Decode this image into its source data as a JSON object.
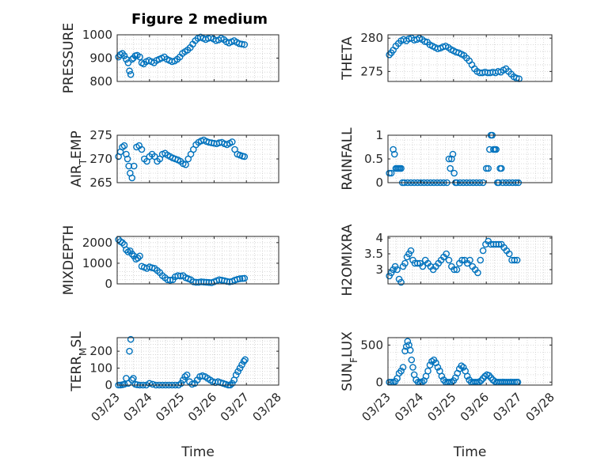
{
  "figure": {
    "title": "Figure 2 medium",
    "marker_color": "#0072bd"
  },
  "chart_data": [
    {
      "type": "scatter",
      "ylabel": "PRESSURE",
      "ylabel_sub": "",
      "ylim": [
        800,
        1000
      ],
      "yticks": [
        800,
        900,
        1000
      ],
      "grid": true,
      "xlim": [
        0,
        5
      ],
      "xticks": [
        "03/23",
        "03/24",
        "03/25",
        "03/26",
        "03/27",
        "03/28"
      ],
      "xlabel": "",
      "x": [
        0.04,
        0.1,
        0.16,
        0.22,
        0.28,
        0.34,
        0.38,
        0.42,
        0.46,
        0.5,
        0.56,
        0.62,
        0.7,
        0.76,
        0.82,
        0.9,
        0.98,
        1.06,
        1.14,
        1.22,
        1.3,
        1.38,
        1.46,
        1.54,
        1.62,
        1.7,
        1.78,
        1.86,
        1.94,
        2.02,
        2.1,
        2.18,
        2.26,
        2.34,
        2.42,
        2.5,
        2.58,
        2.66,
        2.74,
        2.82,
        2.9,
        2.98,
        3.06,
        3.14,
        3.22,
        3.3,
        3.38,
        3.46,
        3.54,
        3.62,
        3.7,
        3.78,
        3.86,
        3.94
      ],
      "y": [
        905,
        915,
        920,
        910,
        895,
        880,
        845,
        830,
        895,
        900,
        910,
        912,
        905,
        880,
        875,
        885,
        890,
        885,
        880,
        890,
        895,
        900,
        905,
        895,
        890,
        885,
        888,
        895,
        905,
        920,
        928,
        935,
        945,
        960,
        975,
        985,
        990,
        985,
        980,
        985,
        988,
        982,
        975,
        978,
        985,
        980,
        970,
        965,
        970,
        975,
        968,
        962,
        960,
        958
      ]
    },
    {
      "type": "scatter",
      "ylabel": "THETA",
      "ylabel_sub": "",
      "ylim": [
        273.5,
        280.5
      ],
      "yticks": [
        275,
        280
      ],
      "grid": true,
      "xlim": [
        0,
        5
      ],
      "xticks": [
        "03/23",
        "03/24",
        "03/25",
        "03/26",
        "03/27",
        "03/28"
      ],
      "xlabel": "",
      "x": [
        0.04,
        0.1,
        0.16,
        0.24,
        0.32,
        0.4,
        0.48,
        0.56,
        0.64,
        0.72,
        0.8,
        0.88,
        0.96,
        1.04,
        1.12,
        1.2,
        1.28,
        1.36,
        1.44,
        1.52,
        1.6,
        1.68,
        1.76,
        1.84,
        1.92,
        2.0,
        2.08,
        2.16,
        2.24,
        2.32,
        2.4,
        2.48,
        2.56,
        2.64,
        2.72,
        2.8,
        2.88,
        2.96,
        3.04,
        3.12,
        3.2,
        3.28,
        3.36,
        3.44,
        3.52,
        3.6,
        3.68,
        3.76,
        3.84,
        3.92,
        4.0
      ],
      "y": [
        277.5,
        277.8,
        278.2,
        278.8,
        279.2,
        279.6,
        279.8,
        279.6,
        279.9,
        280.0,
        279.7,
        279.8,
        280.0,
        279.8,
        279.5,
        279.4,
        279.0,
        278.8,
        278.6,
        278.4,
        278.5,
        278.7,
        278.8,
        278.6,
        278.3,
        278.1,
        277.9,
        277.8,
        277.6,
        277.4,
        277.0,
        276.6,
        276.0,
        275.4,
        275.0,
        274.8,
        274.8,
        274.9,
        274.8,
        274.8,
        274.9,
        274.8,
        275.0,
        274.9,
        275.2,
        275.4,
        275.0,
        274.6,
        274.2,
        274.0,
        273.9
      ]
    },
    {
      "type": "scatter",
      "ylabel": "AIR",
      "ylabel_sub": "T",
      "ylabel_suffix": "EMP",
      "ylim": [
        265,
        275
      ],
      "yticks": [
        265,
        270,
        275
      ],
      "grid": true,
      "xlim": [
        0,
        5
      ],
      "xticks": [
        "03/23",
        "03/24",
        "03/25",
        "03/26",
        "03/27",
        "03/28"
      ],
      "xlabel": "",
      "x": [
        0.04,
        0.1,
        0.16,
        0.22,
        0.28,
        0.32,
        0.36,
        0.4,
        0.46,
        0.52,
        0.6,
        0.68,
        0.76,
        0.84,
        0.92,
        1.0,
        1.08,
        1.16,
        1.24,
        1.32,
        1.4,
        1.48,
        1.56,
        1.64,
        1.72,
        1.8,
        1.88,
        1.96,
        2.04,
        2.12,
        2.2,
        2.28,
        2.36,
        2.44,
        2.52,
        2.6,
        2.68,
        2.76,
        2.84,
        2.92,
        3.0,
        3.08,
        3.16,
        3.24,
        3.32,
        3.4,
        3.48,
        3.56,
        3.64,
        3.72,
        3.8,
        3.88,
        3.94
      ],
      "y": [
        270.5,
        271.5,
        272.5,
        272.8,
        271.0,
        270.0,
        268.5,
        267.0,
        266.0,
        268.5,
        272.5,
        272.8,
        272.0,
        270.0,
        269.5,
        270.5,
        271.0,
        270.5,
        269.5,
        270.0,
        271.0,
        271.2,
        270.8,
        270.5,
        270.2,
        270.0,
        269.8,
        269.5,
        269.0,
        268.8,
        270.0,
        271.0,
        272.0,
        273.0,
        273.5,
        273.8,
        274.0,
        273.7,
        273.5,
        273.4,
        273.3,
        273.2,
        273.4,
        273.5,
        273.2,
        273.0,
        273.3,
        273.6,
        272.0,
        271.0,
        270.8,
        270.6,
        270.5
      ]
    },
    {
      "type": "scatter",
      "ylabel": "RAINFALL",
      "ylabel_sub": "",
      "ylim": [
        0,
        1
      ],
      "yticks": [
        0,
        0.5,
        1
      ],
      "grid": true,
      "xlim": [
        0,
        5
      ],
      "xticks": [
        "03/23",
        "03/24",
        "03/25",
        "03/26",
        "03/27",
        "03/28"
      ],
      "xlabel": "",
      "x": [
        0.04,
        0.1,
        0.16,
        0.2,
        0.24,
        0.28,
        0.32,
        0.36,
        0.4,
        0.44,
        0.5,
        0.6,
        0.7,
        0.8,
        0.9,
        1.0,
        1.1,
        1.2,
        1.3,
        1.4,
        1.5,
        1.6,
        1.7,
        1.8,
        1.86,
        1.9,
        1.94,
        1.98,
        2.02,
        2.06,
        2.1,
        2.2,
        2.3,
        2.4,
        2.5,
        2.6,
        2.7,
        2.8,
        2.9,
        3.0,
        3.06,
        3.1,
        3.14,
        3.18,
        3.22,
        3.26,
        3.3,
        3.34,
        3.38,
        3.42,
        3.46,
        3.5,
        3.6,
        3.7,
        3.8,
        3.9,
        3.98
      ],
      "y": [
        0.2,
        0.2,
        0.7,
        0.6,
        0.3,
        0.3,
        0.3,
        0.3,
        0.3,
        0.0,
        0.0,
        0.0,
        0.0,
        0.0,
        0.0,
        0.0,
        0.0,
        0.0,
        0.0,
        0.0,
        0.0,
        0.0,
        0.0,
        0.0,
        0.5,
        0.3,
        0.5,
        0.6,
        0.2,
        0.0,
        0.0,
        0.0,
        0.0,
        0.0,
        0.0,
        0.0,
        0.0,
        0.0,
        0.0,
        0.3,
        0.3,
        0.7,
        1.0,
        1.0,
        0.7,
        0.7,
        0.7,
        0.0,
        0.0,
        0.3,
        0.3,
        0.0,
        0.0,
        0.0,
        0.0,
        0.0,
        0.0
      ]
    },
    {
      "type": "scatter",
      "ylabel": "MIXDEPTH",
      "ylabel_sub": "",
      "ylim": [
        0,
        2300
      ],
      "yticks": [
        0,
        1000,
        2000
      ],
      "grid": true,
      "xlim": [
        0,
        5
      ],
      "xticks": [
        "03/23",
        "03/24",
        "03/25",
        "03/26",
        "03/27",
        "03/28"
      ],
      "xlabel": "",
      "x": [
        0.04,
        0.1,
        0.16,
        0.22,
        0.28,
        0.34,
        0.4,
        0.46,
        0.52,
        0.58,
        0.64,
        0.7,
        0.76,
        0.84,
        0.92,
        1.0,
        1.08,
        1.16,
        1.24,
        1.32,
        1.4,
        1.48,
        1.56,
        1.64,
        1.72,
        1.8,
        1.88,
        1.96,
        2.04,
        2.12,
        2.2,
        2.28,
        2.36,
        2.44,
        2.52,
        2.6,
        2.68,
        2.76,
        2.84,
        2.92,
        3.0,
        3.08,
        3.16,
        3.24,
        3.32,
        3.4,
        3.48,
        3.56,
        3.64,
        3.72,
        3.8,
        3.88,
        3.94
      ],
      "y": [
        2150,
        2050,
        2000,
        1900,
        1650,
        1550,
        1600,
        1450,
        1350,
        1200,
        1250,
        1350,
        850,
        800,
        750,
        820,
        780,
        750,
        650,
        550,
        400,
        300,
        200,
        180,
        200,
        350,
        400,
        380,
        400,
        300,
        250,
        200,
        100,
        80,
        80,
        100,
        90,
        80,
        70,
        60,
        100,
        150,
        200,
        180,
        150,
        120,
        100,
        120,
        180,
        220,
        250,
        260,
        270
      ]
    },
    {
      "type": "scatter",
      "ylabel": "H2OMIXRA",
      "ylabel_sub": "",
      "ylim": [
        2.55,
        4.05
      ],
      "yticks": [
        3,
        3.5,
        4
      ],
      "grid": true,
      "xlim": [
        0,
        5
      ],
      "xticks": [
        "03/23",
        "03/24",
        "03/25",
        "03/26",
        "03/27",
        "03/28"
      ],
      "xlabel": "",
      "x": [
        0.04,
        0.1,
        0.16,
        0.22,
        0.28,
        0.34,
        0.4,
        0.46,
        0.52,
        0.58,
        0.64,
        0.7,
        0.76,
        0.82,
        0.9,
        0.98,
        1.06,
        1.14,
        1.22,
        1.3,
        1.38,
        1.46,
        1.54,
        1.62,
        1.7,
        1.78,
        1.86,
        1.94,
        2.02,
        2.1,
        2.18,
        2.26,
        2.34,
        2.42,
        2.5,
        2.58,
        2.66,
        2.74,
        2.82,
        2.9,
        2.98,
        3.06,
        3.14,
        3.22,
        3.3,
        3.38,
        3.46,
        3.54,
        3.62,
        3.7,
        3.78,
        3.86,
        3.94
      ],
      "y": [
        2.8,
        2.9,
        3.0,
        3.1,
        3.0,
        2.7,
        2.6,
        3.1,
        3.2,
        3.4,
        3.5,
        3.6,
        3.3,
        3.2,
        3.2,
        3.2,
        3.1,
        3.3,
        3.2,
        3.1,
        3.0,
        3.1,
        3.2,
        3.3,
        3.4,
        3.5,
        3.3,
        3.1,
        3.0,
        3.0,
        3.2,
        3.3,
        3.3,
        3.2,
        3.3,
        3.1,
        3.0,
        2.9,
        3.3,
        3.6,
        3.8,
        3.9,
        3.8,
        3.8,
        3.8,
        3.8,
        3.8,
        3.7,
        3.6,
        3.5,
        3.3,
        3.3,
        3.3
      ]
    },
    {
      "type": "scatter",
      "ylabel": "TERR",
      "ylabel_sub": "M",
      "ylabel_suffix": "SL",
      "ylim": [
        0,
        280
      ],
      "yticks": [
        0,
        100,
        200
      ],
      "grid": true,
      "xlim": [
        0,
        5
      ],
      "xticks": [
        "03/23",
        "03/24",
        "03/25",
        "03/26",
        "03/27",
        "03/28"
      ],
      "xlabel": "Time",
      "x": [
        0.04,
        0.1,
        0.16,
        0.22,
        0.28,
        0.34,
        0.38,
        0.42,
        0.46,
        0.5,
        0.56,
        0.62,
        0.7,
        0.8,
        0.9,
        1.0,
        1.1,
        1.2,
        1.3,
        1.4,
        1.5,
        1.6,
        1.7,
        1.8,
        1.9,
        1.98,
        2.04,
        2.1,
        2.16,
        2.24,
        2.32,
        2.4,
        2.48,
        2.56,
        2.64,
        2.72,
        2.8,
        2.88,
        2.96,
        3.04,
        3.12,
        3.2,
        3.28,
        3.36,
        3.44,
        3.5,
        3.56,
        3.62,
        3.68,
        3.74,
        3.8,
        3.86,
        3.92,
        3.96
      ],
      "y": [
        0,
        0,
        2,
        5,
        40,
        10,
        200,
        270,
        30,
        40,
        5,
        2,
        0,
        0,
        0,
        10,
        5,
        0,
        0,
        0,
        0,
        0,
        0,
        0,
        0,
        10,
        30,
        50,
        60,
        20,
        5,
        10,
        30,
        50,
        55,
        50,
        40,
        30,
        20,
        15,
        20,
        15,
        10,
        5,
        0,
        0,
        10,
        30,
        60,
        80,
        100,
        120,
        140,
        150
      ]
    },
    {
      "type": "scatter",
      "ylabel": "SUN",
      "ylabel_sub": "F",
      "ylabel_suffix": "LUX",
      "ylim": [
        -40,
        600
      ],
      "yticks": [
        0,
        500
      ],
      "grid": true,
      "xlim": [
        0,
        5
      ],
      "xticks": [
        "03/23",
        "03/24",
        "03/25",
        "03/26",
        "03/27",
        "03/28"
      ],
      "xlabel": "Time",
      "x": [
        0.04,
        0.1,
        0.16,
        0.22,
        0.28,
        0.34,
        0.4,
        0.46,
        0.52,
        0.56,
        0.6,
        0.64,
        0.68,
        0.72,
        0.76,
        0.8,
        0.86,
        0.92,
        0.98,
        1.04,
        1.1,
        1.16,
        1.22,
        1.28,
        1.34,
        1.4,
        1.46,
        1.52,
        1.58,
        1.64,
        1.7,
        1.76,
        1.82,
        1.88,
        1.94,
        2.0,
        2.06,
        2.12,
        2.18,
        2.24,
        2.3,
        2.36,
        2.42,
        2.48,
        2.54,
        2.6,
        2.66,
        2.72,
        2.78,
        2.84,
        2.9,
        2.96,
        3.02,
        3.08,
        3.14,
        3.2,
        3.26,
        3.32,
        3.38,
        3.44,
        3.5,
        3.56,
        3.62,
        3.68,
        3.74,
        3.8,
        3.86,
        3.92,
        3.96
      ],
      "y": [
        0,
        0,
        0,
        10,
        50,
        120,
        150,
        200,
        420,
        480,
        550,
        500,
        430,
        300,
        200,
        100,
        30,
        0,
        0,
        0,
        20,
        80,
        150,
        230,
        280,
        300,
        260,
        200,
        150,
        80,
        30,
        0,
        0,
        0,
        0,
        20,
        60,
        120,
        180,
        220,
        200,
        150,
        80,
        30,
        0,
        0,
        0,
        0,
        0,
        20,
        50,
        80,
        100,
        90,
        60,
        30,
        10,
        0,
        0,
        0,
        0,
        0,
        0,
        0,
        0,
        0,
        0,
        0,
        0
      ]
    }
  ]
}
